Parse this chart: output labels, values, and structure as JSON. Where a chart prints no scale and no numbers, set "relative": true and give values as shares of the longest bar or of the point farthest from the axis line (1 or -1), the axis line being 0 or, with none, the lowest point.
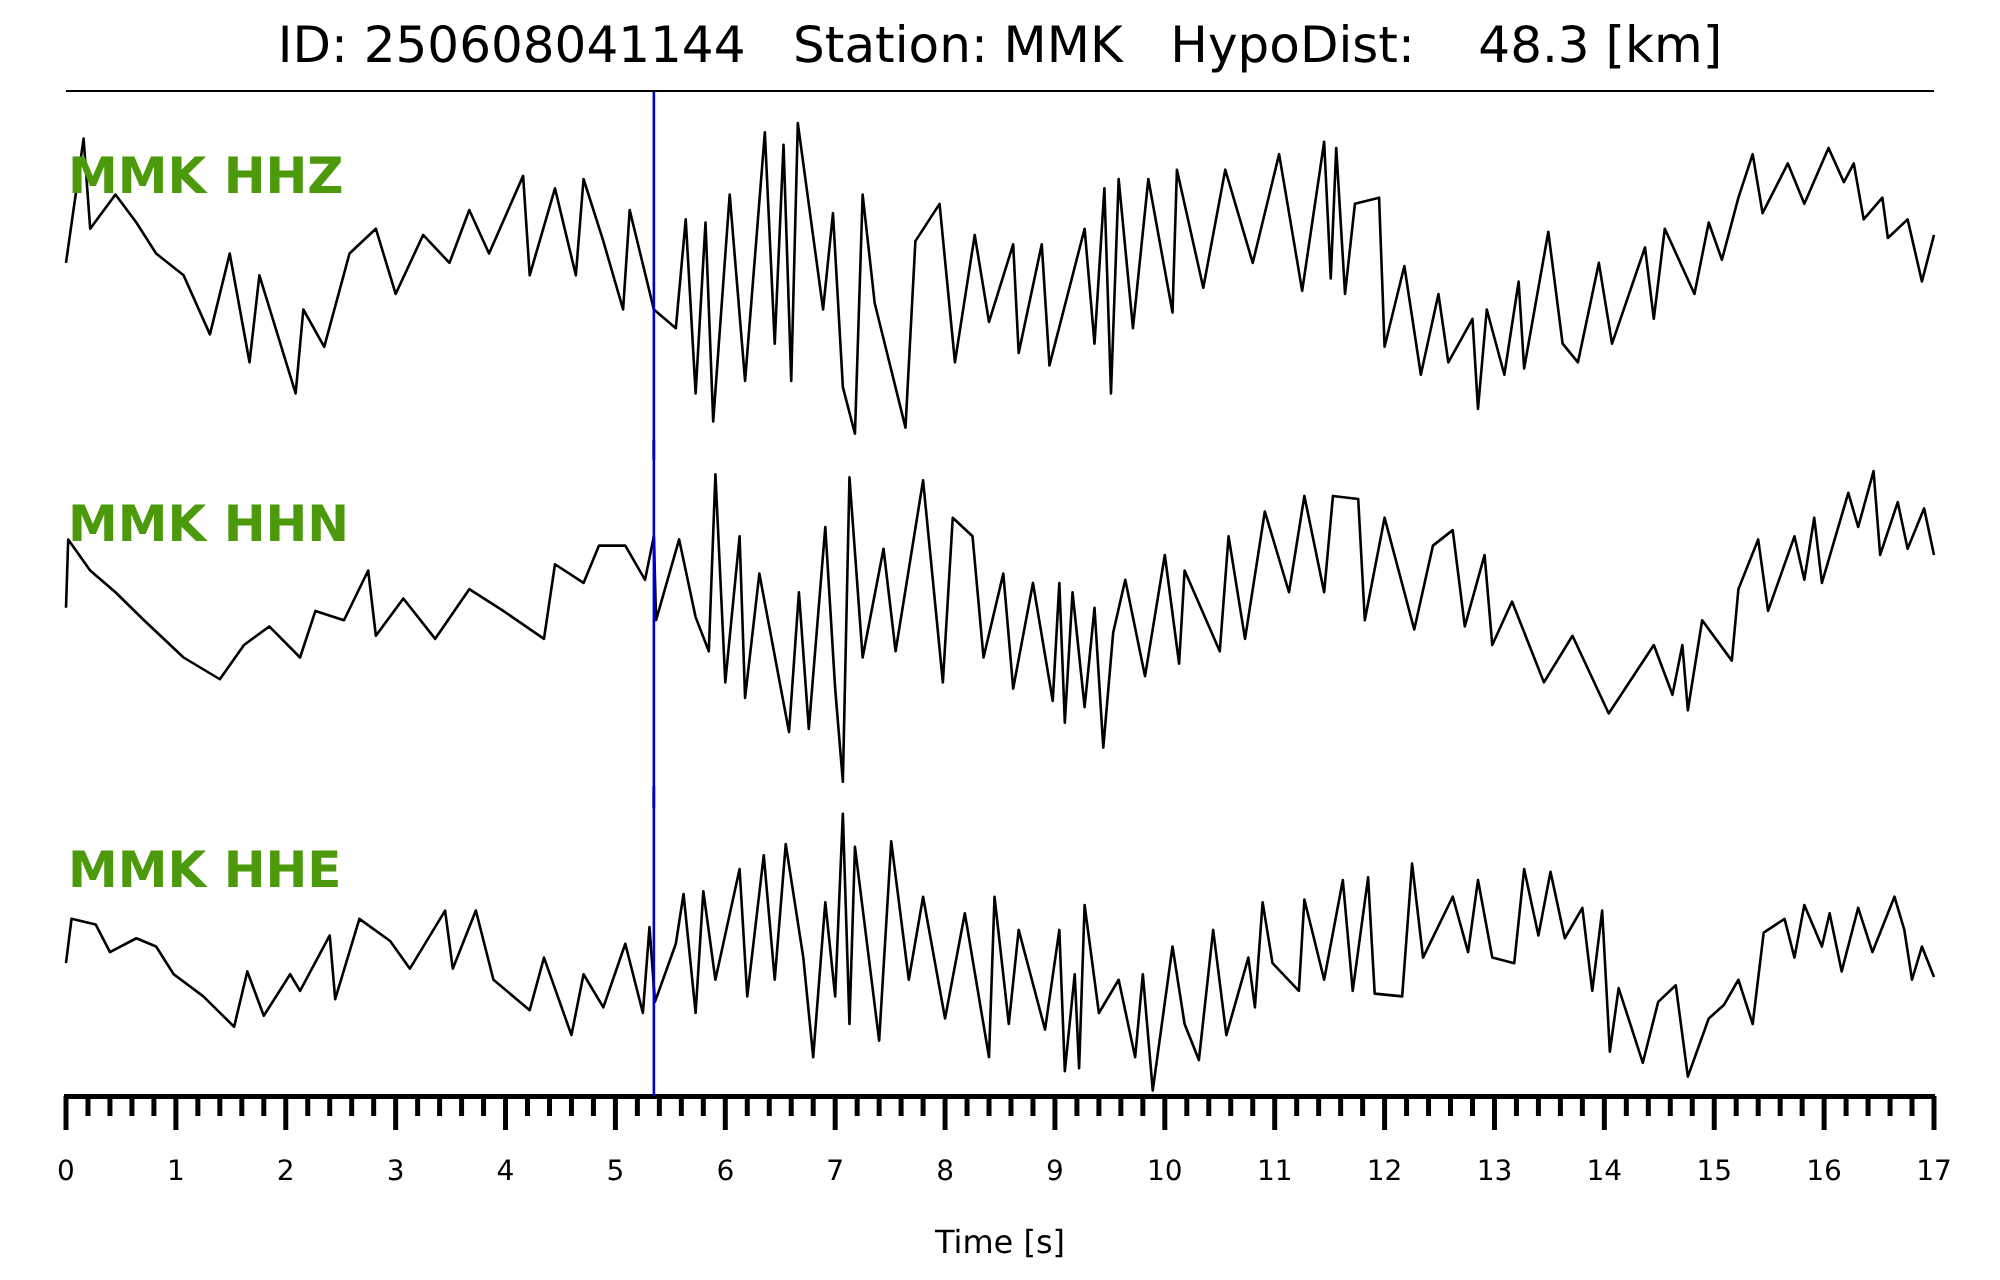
{
  "chart_data": [
    {
      "type": "line",
      "title": "ID: 250608041144   Station: MMK   HypoDist:    48.3 [km]",
      "relative": true,
      "xlim": [
        0,
        17
      ],
      "tick_labels": false,
      "marker": "none",
      "line_style": "solid",
      "ref_lines": [
        {
          "axis": "x",
          "value": 5.35,
          "color": "#0000cc"
        }
      ],
      "series": [
        {
          "name": "MMK HHZ",
          "color": "#000000",
          "x": [
            0,
            0.16,
            0.22,
            0.45,
            0.64,
            0.82,
            1.07,
            1.31,
            1.49,
            1.67,
            1.76,
            2.09,
            2.16,
            2.35,
            2.58,
            2.82,
            3.0,
            3.25,
            3.49,
            3.67,
            3.85,
            4.16,
            4.22,
            4.45,
            4.64,
            4.71,
            4.89,
            5.07,
            5.13,
            5.35,
            5.55,
            5.64,
            5.73,
            5.82,
            5.89,
            6.04,
            6.18,
            6.36,
            6.45,
            6.53,
            6.6,
            6.66,
            6.89,
            6.98,
            7.07,
            7.18,
            7.25,
            7.36,
            7.64,
            7.73,
            7.95,
            8.09,
            8.27,
            8.4,
            8.62,
            8.67,
            8.88,
            8.95,
            9.27,
            9.36,
            9.45,
            9.51,
            9.58,
            9.71,
            9.85,
            10.07,
            10.11,
            10.35,
            10.55,
            10.8,
            11.04,
            11.25,
            11.45,
            11.51,
            11.56,
            11.64,
            11.73,
            11.95,
            12.0,
            12.18,
            12.33,
            12.49,
            12.58,
            12.8,
            12.85,
            12.93,
            13.09,
            13.22,
            13.27,
            13.49,
            13.62,
            13.76,
            13.95,
            14.07,
            14.37,
            14.45,
            14.55,
            14.82,
            14.95,
            15.07,
            15.22,
            15.35,
            15.44,
            15.67,
            15.82,
            16.04,
            16.18,
            16.27,
            16.36,
            16.53,
            16.58,
            16.76,
            16.89,
            17.0
          ],
          "values": [
            0.55,
            0.95,
            0.66,
            0.77,
            0.68,
            0.58,
            0.51,
            0.32,
            0.58,
            0.23,
            0.51,
            0.13,
            0.4,
            0.28,
            0.58,
            0.66,
            0.45,
            0.64,
            0.55,
            0.72,
            0.58,
            0.83,
            0.51,
            0.79,
            0.51,
            0.82,
            0.62,
            0.4,
            0.72,
            0.4,
            0.34,
            0.69,
            0.13,
            0.68,
            0.04,
            0.77,
            0.17,
            0.97,
            0.29,
            0.93,
            0.17,
            1.0,
            0.4,
            0.71,
            0.15,
            0,
            0.77,
            0.42,
            0.02,
            0.62,
            0.74,
            0.23,
            0.64,
            0.36,
            0.61,
            0.26,
            0.61,
            0.22,
            0.66,
            0.29,
            0.79,
            0.13,
            0.82,
            0.34,
            0.82,
            0.39,
            0.85,
            0.47,
            0.85,
            0.55,
            0.9,
            0.46,
            0.94,
            0.5,
            0.92,
            0.45,
            0.74,
            0.76,
            0.28,
            0.54,
            0.19,
            0.45,
            0.23,
            0.37,
            0.08,
            0.4,
            0.19,
            0.49,
            0.21,
            0.65,
            0.29,
            0.23,
            0.55,
            0.29,
            0.6,
            0.37,
            0.66,
            0.45,
            0.68,
            0.56,
            0.76,
            0.9,
            0.71,
            0.87,
            0.74,
            0.92,
            0.81,
            0.87,
            0.69,
            0.76,
            0.63,
            0.69,
            0.49,
            0.64
          ]
        }
      ]
    },
    {
      "type": "line",
      "relative": true,
      "xlim": [
        0,
        17
      ],
      "tick_labels": false,
      "marker": "none",
      "line_style": "solid",
      "ref_lines": [
        {
          "axis": "x",
          "value": 5.35,
          "color": "#0000cc"
        }
      ],
      "series": [
        {
          "name": "MMK HHN",
          "color": "#000000",
          "x": [
            0,
            0.02,
            0.22,
            0.45,
            0.71,
            1.07,
            1.4,
            1.62,
            1.85,
            2.13,
            2.27,
            2.53,
            2.75,
            2.82,
            3.07,
            3.36,
            3.67,
            3.98,
            4.35,
            4.45,
            4.71,
            4.85,
            5.09,
            5.27,
            5.35,
            5.37,
            5.58,
            5.73,
            5.85,
            5.91,
            6.0,
            6.13,
            6.18,
            6.31,
            6.58,
            6.67,
            6.76,
            6.91,
            7.0,
            7.07,
            7.13,
            7.25,
            7.44,
            7.55,
            7.8,
            7.98,
            8.07,
            8.25,
            8.35,
            8.53,
            8.62,
            8.8,
            8.98,
            9.04,
            9.09,
            9.16,
            9.27,
            9.36,
            9.44,
            9.53,
            9.64,
            9.82,
            10.0,
            10.13,
            10.18,
            10.5,
            10.58,
            10.73,
            10.91,
            11.13,
            11.27,
            11.45,
            11.53,
            11.76,
            11.82,
            12.0,
            12.27,
            12.44,
            12.62,
            12.73,
            12.91,
            12.98,
            13.16,
            13.45,
            13.71,
            14.04,
            14.45,
            14.62,
            14.71,
            14.76,
            14.89,
            15.16,
            15.22,
            15.4,
            15.49,
            15.73,
            15.82,
            15.91,
            15.98,
            16.22,
            16.31,
            16.45,
            16.51,
            16.67,
            16.76,
            16.91,
            17.0
          ],
          "values": [
            0.56,
            0.78,
            0.68,
            0.61,
            0.52,
            0.4,
            0.33,
            0.44,
            0.5,
            0.4,
            0.55,
            0.52,
            0.68,
            0.47,
            0.59,
            0.46,
            0.62,
            0.55,
            0.46,
            0.7,
            0.64,
            0.76,
            0.76,
            0.65,
            0.79,
            0.52,
            0.78,
            0.53,
            0.42,
            0.99,
            0.32,
            0.79,
            0.27,
            0.67,
            0.16,
            0.61,
            0.17,
            0.82,
            0.3,
            0,
            0.98,
            0.4,
            0.75,
            0.42,
            0.97,
            0.32,
            0.85,
            0.79,
            0.4,
            0.67,
            0.3,
            0.64,
            0.26,
            0.64,
            0.19,
            0.61,
            0.24,
            0.56,
            0.11,
            0.48,
            0.65,
            0.34,
            0.73,
            0.38,
            0.68,
            0.42,
            0.79,
            0.46,
            0.87,
            0.61,
            0.92,
            0.61,
            0.92,
            0.91,
            0.52,
            0.85,
            0.49,
            0.76,
            0.81,
            0.5,
            0.73,
            0.44,
            0.58,
            0.32,
            0.47,
            0.22,
            0.44,
            0.28,
            0.44,
            0.23,
            0.52,
            0.39,
            0.62,
            0.78,
            0.55,
            0.79,
            0.65,
            0.85,
            0.64,
            0.93,
            0.82,
            1.0,
            0.73,
            0.9,
            0.75,
            0.88,
            0.73
          ]
        }
      ]
    },
    {
      "type": "line",
      "relative": true,
      "xlim": [
        0,
        17
      ],
      "xlabel": "Time [s]",
      "tick_labels": "x",
      "marker": "none",
      "line_style": "solid",
      "xticks": [
        0,
        {
          "value": 0.2,
          "label": null
        },
        {
          "value": 0.4,
          "label": null
        },
        {
          "value": 0.6,
          "label": null
        },
        {
          "value": 0.8,
          "label": null
        },
        1,
        {
          "value": 1.2,
          "label": null
        },
        {
          "value": 1.4,
          "label": null
        },
        {
          "value": 1.6,
          "label": null
        },
        {
          "value": 1.8,
          "label": null
        },
        2,
        {
          "value": 2.2,
          "label": null
        },
        {
          "value": 2.4,
          "label": null
        },
        {
          "value": 2.6,
          "label": null
        },
        {
          "value": 2.8,
          "label": null
        },
        3,
        {
          "value": 3.2,
          "label": null
        },
        {
          "value": 3.4,
          "label": null
        },
        {
          "value": 3.6,
          "label": null
        },
        {
          "value": 3.8,
          "label": null
        },
        4,
        {
          "value": 4.2,
          "label": null
        },
        {
          "value": 4.4,
          "label": null
        },
        {
          "value": 4.6,
          "label": null
        },
        {
          "value": 4.8,
          "label": null
        },
        5,
        {
          "value": 5.2,
          "label": null
        },
        {
          "value": 5.4,
          "label": null
        },
        {
          "value": 5.6,
          "label": null
        },
        {
          "value": 5.8,
          "label": null
        },
        6,
        {
          "value": 6.2,
          "label": null
        },
        {
          "value": 6.4,
          "label": null
        },
        {
          "value": 6.6,
          "label": null
        },
        {
          "value": 6.8,
          "label": null
        },
        7,
        {
          "value": 7.2,
          "label": null
        },
        {
          "value": 7.4,
          "label": null
        },
        {
          "value": 7.6,
          "label": null
        },
        {
          "value": 7.8,
          "label": null
        },
        8,
        {
          "value": 8.2,
          "label": null
        },
        {
          "value": 8.4,
          "label": null
        },
        {
          "value": 8.6,
          "label": null
        },
        {
          "value": 8.8,
          "label": null
        },
        9,
        {
          "value": 9.2,
          "label": null
        },
        {
          "value": 9.4,
          "label": null
        },
        {
          "value": 9.6,
          "label": null
        },
        {
          "value": 9.8,
          "label": null
        },
        10,
        {
          "value": 10.2,
          "label": null
        },
        {
          "value": 10.4,
          "label": null
        },
        {
          "value": 10.6,
          "label": null
        },
        {
          "value": 10.8,
          "label": null
        },
        11,
        {
          "value": 11.2,
          "label": null
        },
        {
          "value": 11.4,
          "label": null
        },
        {
          "value": 11.6,
          "label": null
        },
        {
          "value": 11.8,
          "label": null
        },
        12,
        {
          "value": 12.2,
          "label": null
        },
        {
          "value": 12.4,
          "label": null
        },
        {
          "value": 12.6,
          "label": null
        },
        {
          "value": 12.8,
          "label": null
        },
        13,
        {
          "value": 13.2,
          "label": null
        },
        {
          "value": 13.4,
          "label": null
        },
        {
          "value": 13.6,
          "label": null
        },
        {
          "value": 13.8,
          "label": null
        },
        14,
        {
          "value": 14.2,
          "label": null
        },
        {
          "value": 14.4,
          "label": null
        },
        {
          "value": 14.6,
          "label": null
        },
        {
          "value": 14.8,
          "label": null
        },
        15,
        {
          "value": 15.2,
          "label": null
        },
        {
          "value": 15.4,
          "label": null
        },
        {
          "value": 15.6,
          "label": null
        },
        {
          "value": 15.8,
          "label": null
        },
        16,
        {
          "value": 16.2,
          "label": null
        },
        {
          "value": 16.4,
          "label": null
        },
        {
          "value": 16.6,
          "label": null
        },
        {
          "value": 16.8,
          "label": null
        },
        17
      ],
      "ref_lines": [
        {
          "axis": "x",
          "value": 5.35,
          "color": "#0000cc"
        }
      ],
      "series": [
        {
          "name": "MMK HHE",
          "color": "#000000",
          "x": [
            0,
            0.05,
            0.27,
            0.4,
            0.64,
            0.82,
            0.98,
            1.25,
            1.53,
            1.65,
            1.8,
            2.04,
            2.13,
            2.4,
            2.45,
            2.67,
            2.95,
            3.13,
            3.45,
            3.52,
            3.73,
            3.89,
            4.22,
            4.35,
            4.6,
            4.71,
            4.89,
            5.09,
            5.25,
            5.31,
            5.36,
            5.55,
            5.62,
            5.73,
            5.8,
            5.91,
            6.13,
            6.2,
            6.35,
            6.45,
            6.55,
            6.71,
            6.8,
            6.91,
            7.0,
            7.07,
            7.13,
            7.18,
            7.4,
            7.51,
            7.67,
            7.8,
            8.0,
            8.18,
            8.4,
            8.45,
            8.58,
            8.67,
            8.91,
            9.04,
            9.09,
            9.18,
            9.22,
            9.27,
            9.4,
            9.58,
            9.73,
            9.8,
            9.89,
            10.07,
            10.18,
            10.31,
            10.44,
            10.56,
            10.76,
            10.82,
            10.89,
            10.98,
            11.22,
            11.27,
            11.45,
            11.62,
            11.71,
            11.85,
            11.91,
            12.16,
            12.25,
            12.35,
            12.62,
            12.76,
            12.85,
            12.98,
            13.18,
            13.27,
            13.4,
            13.51,
            13.64,
            13.8,
            13.89,
            13.98,
            14.05,
            14.13,
            14.35,
            14.49,
            14.65,
            14.76,
            14.95,
            15.09,
            15.22,
            15.35,
            15.45,
            15.64,
            15.73,
            15.82,
            15.98,
            16.05,
            16.16,
            16.31,
            16.44,
            16.64,
            16.73,
            16.8,
            16.89,
            17.0
          ],
          "values": [
            0.46,
            0.62,
            0.6,
            0.5,
            0.55,
            0.52,
            0.42,
            0.34,
            0.23,
            0.43,
            0.27,
            0.42,
            0.36,
            0.56,
            0.33,
            0.62,
            0.54,
            0.44,
            0.65,
            0.44,
            0.65,
            0.4,
            0.29,
            0.48,
            0.2,
            0.42,
            0.3,
            0.53,
            0.28,
            0.59,
            0.32,
            0.53,
            0.71,
            0.28,
            0.72,
            0.4,
            0.8,
            0.34,
            0.85,
            0.4,
            0.89,
            0.48,
            0.12,
            0.68,
            0.34,
            1.0,
            0.24,
            0.88,
            0.18,
            0.9,
            0.4,
            0.7,
            0.26,
            0.64,
            0.12,
            0.7,
            0.24,
            0.58,
            0.22,
            0.58,
            0.07,
            0.42,
            0.08,
            0.67,
            0.28,
            0.4,
            0.12,
            0.42,
            0,
            0.52,
            0.24,
            0.11,
            0.58,
            0.2,
            0.48,
            0.3,
            0.68,
            0.46,
            0.36,
            0.69,
            0.4,
            0.76,
            0.36,
            0.77,
            0.35,
            0.34,
            0.82,
            0.48,
            0.7,
            0.5,
            0.76,
            0.48,
            0.46,
            0.8,
            0.56,
            0.79,
            0.55,
            0.66,
            0.36,
            0.65,
            0.14,
            0.37,
            0.1,
            0.32,
            0.38,
            0.05,
            0.26,
            0.31,
            0.4,
            0.24,
            0.57,
            0.62,
            0.48,
            0.67,
            0.52,
            0.64,
            0.43,
            0.66,
            0.5,
            0.7,
            0.58,
            0.4,
            0.52,
            0.41
          ]
        }
      ]
    }
  ]
}
